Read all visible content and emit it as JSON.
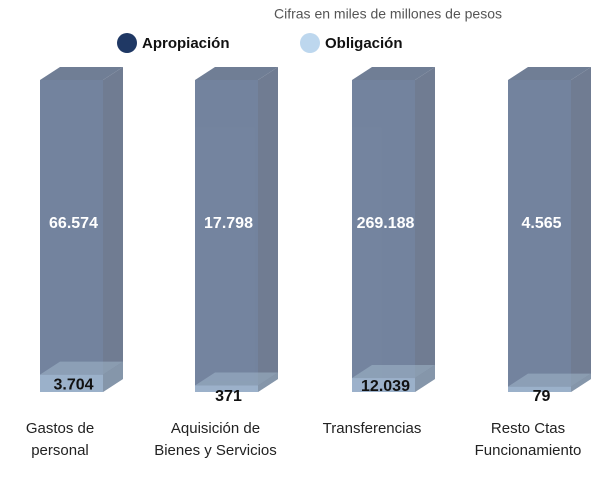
{
  "chart_data": {
    "type": "bar3d",
    "subtitle": "Cifras en miles de millones de pesos",
    "categories": [
      "Gastos de personal",
      "Aquisición de Bienes y Servicios",
      "Transferencias",
      "Resto Ctas Funcionamiento"
    ],
    "series": [
      {
        "name": "Apropiación",
        "color": "#1f3864",
        "values": [
          66574,
          17798,
          269188,
          4565
        ],
        "value_labels": [
          "66.574",
          "17.798",
          "269.188",
          "4.565"
        ]
      },
      {
        "name": "Obligación",
        "color": "#bdd7ee",
        "values": [
          3704,
          371,
          12039,
          79
        ],
        "value_labels": [
          "3.704",
          "371",
          "12.039",
          "79"
        ]
      }
    ],
    "legend": "top"
  }
}
